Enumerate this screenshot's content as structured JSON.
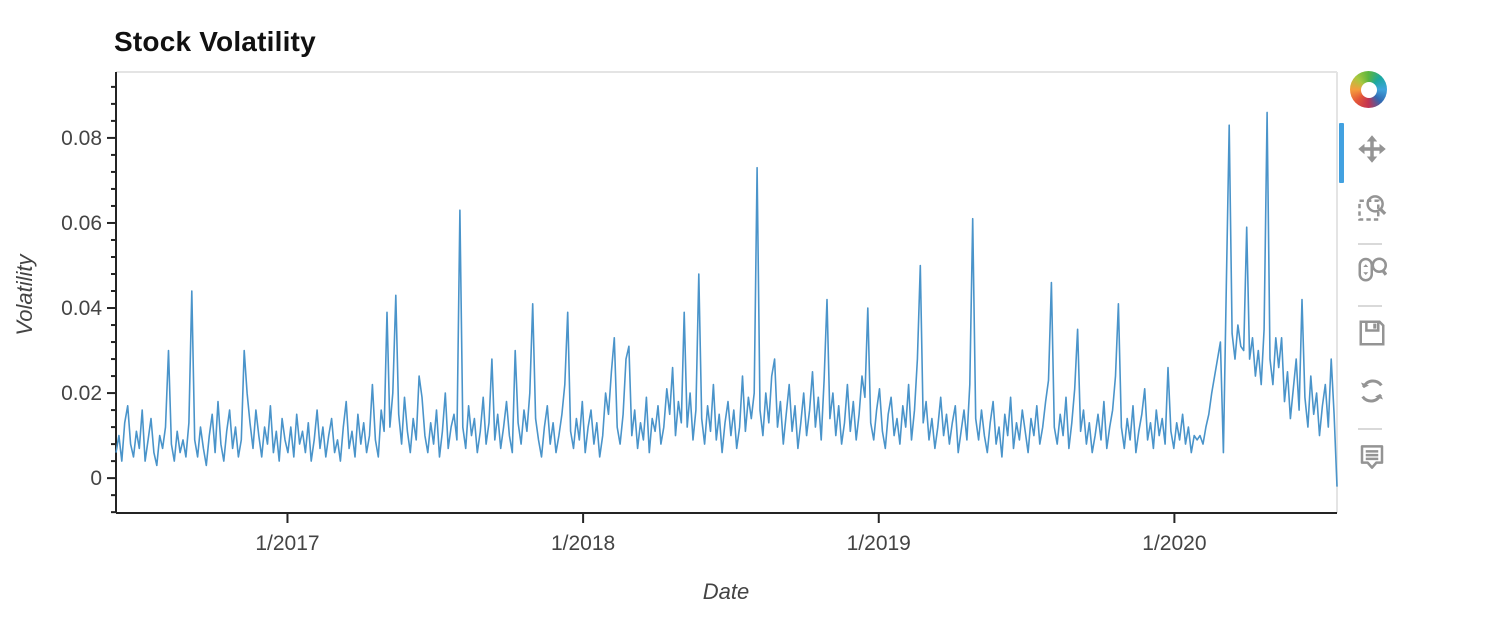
{
  "chart_data": {
    "type": "line",
    "title": "Stock Volatility",
    "xlabel": "Date",
    "ylabel": "Volatility",
    "legend": "none",
    "grid": false,
    "x_range": {
      "start": 2016.42,
      "end": 2020.55
    },
    "x_ticks": [
      {
        "value": 2017,
        "label": "1/2017"
      },
      {
        "value": 2018,
        "label": "1/2018"
      },
      {
        "value": 2019,
        "label": "1/2019"
      },
      {
        "value": 2020,
        "label": "1/2020"
      }
    ],
    "y_range": {
      "start": -0.0082,
      "end": 0.0955
    },
    "y_ticks": [
      {
        "value": 0,
        "label": "0"
      },
      {
        "value": 0.02,
        "label": "0.02"
      },
      {
        "value": 0.04,
        "label": "0.04"
      },
      {
        "value": 0.06,
        "label": "0.06"
      },
      {
        "value": 0.08,
        "label": "0.08"
      }
    ],
    "y_minor_step": 0.004,
    "line_color": "#4a94ca",
    "values": [
      0.006,
      0.01,
      0.004,
      0.013,
      0.017,
      0.008,
      0.005,
      0.011,
      0.007,
      0.016,
      0.004,
      0.009,
      0.014,
      0.006,
      0.003,
      0.01,
      0.007,
      0.012,
      0.03,
      0.008,
      0.004,
      0.011,
      0.006,
      0.009,
      0.005,
      0.013,
      0.044,
      0.009,
      0.005,
      0.012,
      0.007,
      0.003,
      0.01,
      0.015,
      0.006,
      0.018,
      0.008,
      0.004,
      0.011,
      0.016,
      0.007,
      0.012,
      0.005,
      0.009,
      0.03,
      0.02,
      0.013,
      0.007,
      0.016,
      0.01,
      0.005,
      0.012,
      0.008,
      0.017,
      0.006,
      0.011,
      0.004,
      0.014,
      0.009,
      0.006,
      0.012,
      0.005,
      0.015,
      0.008,
      0.011,
      0.006,
      0.013,
      0.004,
      0.009,
      0.016,
      0.007,
      0.012,
      0.005,
      0.01,
      0.014,
      0.006,
      0.009,
      0.004,
      0.012,
      0.018,
      0.007,
      0.011,
      0.005,
      0.015,
      0.008,
      0.013,
      0.006,
      0.01,
      0.022,
      0.009,
      0.005,
      0.016,
      0.011,
      0.039,
      0.012,
      0.02,
      0.043,
      0.015,
      0.008,
      0.019,
      0.011,
      0.006,
      0.014,
      0.009,
      0.024,
      0.019,
      0.01,
      0.006,
      0.013,
      0.008,
      0.016,
      0.005,
      0.011,
      0.02,
      0.007,
      0.012,
      0.015,
      0.009,
      0.063,
      0.012,
      0.007,
      0.017,
      0.01,
      0.014,
      0.006,
      0.011,
      0.019,
      0.008,
      0.013,
      0.028,
      0.009,
      0.015,
      0.007,
      0.012,
      0.018,
      0.01,
      0.006,
      0.03,
      0.013,
      0.008,
      0.016,
      0.011,
      0.02,
      0.041,
      0.014,
      0.009,
      0.005,
      0.012,
      0.017,
      0.008,
      0.013,
      0.006,
      0.01,
      0.015,
      0.022,
      0.039,
      0.011,
      0.007,
      0.014,
      0.009,
      0.018,
      0.006,
      0.012,
      0.016,
      0.008,
      0.013,
      0.005,
      0.01,
      0.02,
      0.015,
      0.025,
      0.033,
      0.012,
      0.008,
      0.015,
      0.028,
      0.031,
      0.01,
      0.016,
      0.007,
      0.013,
      0.009,
      0.019,
      0.006,
      0.014,
      0.011,
      0.017,
      0.008,
      0.012,
      0.021,
      0.015,
      0.026,
      0.01,
      0.018,
      0.013,
      0.039,
      0.012,
      0.02,
      0.009,
      0.016,
      0.048,
      0.014,
      0.008,
      0.017,
      0.011,
      0.022,
      0.009,
      0.015,
      0.006,
      0.013,
      0.018,
      0.01,
      0.016,
      0.007,
      0.012,
      0.024,
      0.011,
      0.019,
      0.014,
      0.02,
      0.073,
      0.016,
      0.01,
      0.02,
      0.013,
      0.024,
      0.028,
      0.012,
      0.018,
      0.008,
      0.015,
      0.022,
      0.011,
      0.017,
      0.007,
      0.013,
      0.02,
      0.01,
      0.016,
      0.025,
      0.012,
      0.019,
      0.009,
      0.023,
      0.042,
      0.014,
      0.02,
      0.01,
      0.017,
      0.008,
      0.013,
      0.022,
      0.011,
      0.018,
      0.009,
      0.015,
      0.024,
      0.019,
      0.04,
      0.013,
      0.009,
      0.016,
      0.021,
      0.011,
      0.007,
      0.015,
      0.019,
      0.01,
      0.014,
      0.008,
      0.017,
      0.012,
      0.022,
      0.009,
      0.016,
      0.028,
      0.05,
      0.013,
      0.018,
      0.009,
      0.014,
      0.007,
      0.012,
      0.019,
      0.01,
      0.015,
      0.008,
      0.013,
      0.017,
      0.006,
      0.011,
      0.016,
      0.009,
      0.022,
      0.061,
      0.014,
      0.009,
      0.016,
      0.01,
      0.006,
      0.013,
      0.018,
      0.008,
      0.012,
      0.005,
      0.015,
      0.01,
      0.019,
      0.007,
      0.013,
      0.009,
      0.016,
      0.011,
      0.006,
      0.014,
      0.01,
      0.017,
      0.008,
      0.012,
      0.018,
      0.023,
      0.046,
      0.012,
      0.008,
      0.015,
      0.01,
      0.019,
      0.007,
      0.013,
      0.021,
      0.035,
      0.011,
      0.016,
      0.008,
      0.013,
      0.006,
      0.01,
      0.015,
      0.009,
      0.018,
      0.007,
      0.012,
      0.016,
      0.024,
      0.041,
      0.012,
      0.007,
      0.014,
      0.009,
      0.017,
      0.006,
      0.011,
      0.015,
      0.021,
      0.009,
      0.013,
      0.007,
      0.016,
      0.01,
      0.014,
      0.008,
      0.026,
      0.011,
      0.007,
      0.013,
      0.009,
      0.015,
      0.008,
      0.012,
      0.006,
      0.01,
      0.009,
      0.01,
      0.008,
      0.012,
      0.015,
      0.02,
      0.024,
      0.028,
      0.032,
      0.006,
      0.045,
      0.083,
      0.034,
      0.028,
      0.036,
      0.031,
      0.03,
      0.059,
      0.028,
      0.033,
      0.024,
      0.03,
      0.022,
      0.035,
      0.086,
      0.028,
      0.022,
      0.033,
      0.026,
      0.033,
      0.018,
      0.025,
      0.014,
      0.021,
      0.028,
      0.016,
      0.042,
      0.019,
      0.012,
      0.024,
      0.015,
      0.02,
      0.01,
      0.017,
      0.022,
      0.012,
      0.028,
      0.015,
      -0.002
    ]
  },
  "toolbar": {
    "active_color": "#42a1e0",
    "logo_colors": [
      "#5cb53f",
      "#1ba8a0",
      "#3fa4dc",
      "#3268b1",
      "#c23352",
      "#e35538",
      "#f59d3d",
      "#a9c83f",
      "#5cb53f"
    ],
    "groups": [
      [
        {
          "name": "pan",
          "active": true
        },
        {
          "name": "box-zoom",
          "active": false
        }
      ],
      [
        {
          "name": "wheel-zoom",
          "active": false
        }
      ],
      [
        {
          "name": "save",
          "active": false
        },
        {
          "name": "reset",
          "active": false
        }
      ],
      [
        {
          "name": "hover",
          "active": false
        }
      ]
    ]
  }
}
